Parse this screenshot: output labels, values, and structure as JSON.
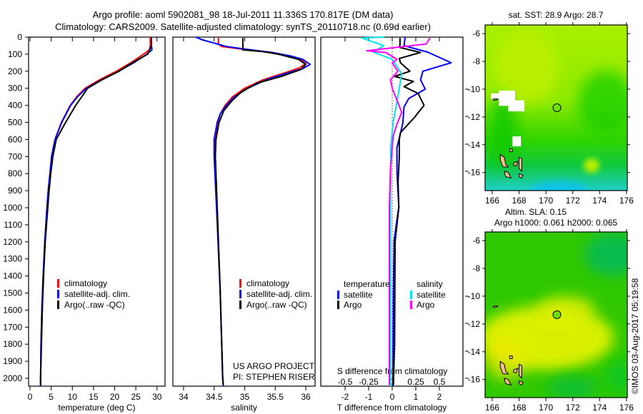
{
  "title": {
    "line1": "Argo profile: aoml 5902081_98 18-Jul-2011 11.336S 170.817E (DM data)",
    "line2": "Climatology: CARS2009. Satellite-adjusted climatology: synTS_20110718.nc (0.69d earlier)"
  },
  "credit": "©IMOS 03-Aug-2017 05:19:58",
  "colors": {
    "climatology": "#ff0000",
    "satellite": "#0000ff",
    "argo": "#000000",
    "s_satellite": "#00e5ee",
    "s_argo": "#ff00ff",
    "land": "#f5c08a"
  },
  "chart_data": [
    {
      "id": "temperature",
      "type": "line",
      "xlabel": "temperature (deg C)",
      "ylabel": "depth",
      "xlim": [
        -0.34,
        31.9
      ],
      "ylim": [
        2046,
        0
      ],
      "xticks": [
        0,
        5,
        10,
        15,
        20,
        25,
        30
      ],
      "yticks": [
        0,
        100,
        200,
        300,
        400,
        500,
        600,
        700,
        800,
        900,
        1000,
        1100,
        1200,
        1300,
        1400,
        1500,
        1600,
        1700,
        1800,
        1900,
        2000
      ],
      "series": [
        {
          "name": "climatology",
          "color": "#ff0000",
          "depth": [
            0,
            50,
            75,
            100,
            150,
            200,
            250,
            300,
            350,
            400,
            500,
            600,
            700,
            800,
            900,
            1000,
            1200,
            1400,
            1600,
            1800,
            2000,
            2046
          ],
          "values": [
            28.4,
            28.4,
            28.2,
            26.8,
            23.8,
            20.4,
            16.4,
            13.0,
            11.0,
            9.5,
            7.4,
            5.9,
            5.1,
            4.7,
            4.3,
            4.0,
            3.5,
            3.1,
            2.8,
            2.6,
            2.5,
            2.5
          ]
        },
        {
          "name": "satellite-adj. clim.",
          "color": "#0000ff",
          "depth": [
            0,
            50,
            75,
            100,
            150,
            200,
            250,
            300,
            350,
            400,
            500,
            600,
            700,
            800,
            900,
            1000,
            1200,
            1400,
            1600,
            1800,
            2000,
            2046
          ],
          "values": [
            28.7,
            28.7,
            28.8,
            27.6,
            24.5,
            21.0,
            16.9,
            13.3,
            11.2,
            9.6,
            7.5,
            5.9,
            5.1,
            4.7,
            4.3,
            4.0,
            3.5,
            3.1,
            2.8,
            2.6,
            2.5,
            2.5
          ]
        },
        {
          "name": "Argo(..raw -QC)",
          "color": "#000000",
          "depth": [
            5,
            50,
            100,
            150,
            200,
            250,
            300,
            350,
            400,
            500,
            600,
            700,
            800,
            900,
            1000,
            1200,
            1400,
            1600,
            1800,
            2000,
            2040
          ],
          "values": [
            28.7,
            28.7,
            27.8,
            24.2,
            21.0,
            17.0,
            13.6,
            12.2,
            10.8,
            8.4,
            6.2,
            5.4,
            4.9,
            4.5,
            4.2,
            3.6,
            3.2,
            2.9,
            2.7,
            2.5,
            2.5
          ]
        }
      ],
      "legend": [
        "climatology",
        "satellite-adj. clim.",
        "Argo(..raw -QC)"
      ]
    },
    {
      "id": "salinity",
      "type": "line",
      "xlabel": "salinity",
      "xlim": [
        33.825,
        36.152
      ],
      "ylim": [
        2046,
        0
      ],
      "xticks": [
        34,
        34.5,
        35,
        35.5,
        36
      ],
      "series": [
        {
          "name": "climatology",
          "color": "#ff0000",
          "depth": [
            0,
            40,
            55,
            70,
            90,
            110,
            130,
            155,
            180,
            210,
            250,
            300,
            350,
            400,
            450,
            500,
            600,
            700,
            1000,
            1500,
            2000,
            2046
          ],
          "values": [
            34.57,
            34.57,
            34.62,
            34.95,
            35.4,
            35.7,
            35.92,
            36.0,
            35.9,
            35.65,
            35.3,
            35.0,
            34.8,
            34.68,
            34.6,
            34.56,
            34.52,
            34.52,
            34.55,
            34.6,
            34.64,
            34.65
          ]
        },
        {
          "name": "satellite-adj. clim.",
          "color": "#0000ff",
          "depth": [
            0,
            15,
            30,
            55,
            70,
            90,
            110,
            130,
            160,
            185,
            210,
            250,
            300,
            350,
            400,
            450,
            500,
            600,
            700,
            1000,
            1500,
            2000,
            2046
          ],
          "values": [
            34.2,
            34.3,
            34.45,
            34.7,
            35.0,
            35.45,
            35.75,
            35.95,
            36.07,
            35.95,
            35.7,
            35.35,
            35.05,
            34.83,
            34.7,
            34.6,
            34.55,
            34.5,
            34.5,
            34.54,
            34.6,
            34.64,
            34.65
          ]
        },
        {
          "name": "Argo(..raw -QC)",
          "color": "#000000",
          "depth": [
            5,
            75,
            85,
            100,
            130,
            160,
            190,
            230,
            270,
            320,
            370,
            430,
            500,
            600,
            700,
            1000,
            1500,
            2000,
            2040
          ],
          "values": [
            34.97,
            34.97,
            35.3,
            35.55,
            35.88,
            36.0,
            35.92,
            35.6,
            35.2,
            34.95,
            34.8,
            34.66,
            34.58,
            34.53,
            34.52,
            34.55,
            34.6,
            34.64,
            34.65
          ]
        }
      ],
      "legend": [
        "climatology",
        "satellite-adj. clim.",
        "Argo(..raw -QC)"
      ],
      "annotation": [
        "US ARGO PROJECT",
        "PI: STEPHEN RISER"
      ]
    },
    {
      "id": "difference",
      "type": "line",
      "xlabel": "T difference from climatology",
      "x2label": "S difference from climatology",
      "xlim": [
        -3.03,
        3.0
      ],
      "x2lim": [
        -0.7575,
        0.75
      ],
      "ylim": [
        2046,
        0
      ],
      "xticks": [
        -2,
        -1,
        0,
        1,
        2
      ],
      "x2ticks": [
        "-0.5",
        "-0.25",
        "0",
        "0.25",
        "0.5"
      ],
      "series": [
        {
          "name": "temperature satellite",
          "axis": "T",
          "color": "#0000ff",
          "depth": [
            0,
            50,
            88,
            150,
            200,
            250,
            305,
            360,
            410,
            506,
            648,
            790,
            995,
            1190,
            1500,
            2000,
            2046
          ],
          "values": [
            0.55,
            0.5,
            1.5,
            2.5,
            1.3,
            1.2,
            1.4,
            0.7,
            0.5,
            0.45,
            0.2,
            0.2,
            0.28,
            0.08,
            0.05,
            0.03,
            0.03
          ]
        },
        {
          "name": "temperature Argo",
          "axis": "T",
          "color": "#000000",
          "depth": [
            5,
            45,
            60,
            90,
            125,
            150,
            200,
            230,
            260,
            290,
            330,
            400,
            470,
            560,
            600,
            700,
            850,
            1000,
            1200,
            1800,
            2040
          ],
          "values": [
            0.33,
            0.33,
            0.3,
            1.2,
            0.3,
            0.35,
            0.75,
            0.1,
            0.9,
            0.5,
            1.1,
            1.35,
            0.95,
            0.35,
            0.3,
            0.3,
            0.25,
            0.28,
            0.12,
            0.1,
            0.05
          ]
        },
        {
          "name": "salinity satellite",
          "axis": "S",
          "color": "#00e5ee",
          "depth": [
            0,
            5,
            50,
            88,
            130,
            215,
            350,
            500,
            640,
            1000,
            2046
          ],
          "values": [
            -0.08,
            -0.32,
            -0.09,
            -0.2,
            0.0,
            0.1,
            0.06,
            0.01,
            -0.015,
            -0.02,
            -0.02
          ]
        },
        {
          "name": "salinity Argo",
          "axis": "S",
          "color": "#ff00ff",
          "depth": [
            5,
            40,
            80,
            90,
            130,
            150,
            200,
            250,
            300,
            370,
            440,
            510,
            580,
            780,
            1000,
            2040
          ],
          "values": [
            0.4,
            0.36,
            -0.27,
            -0.07,
            0.05,
            0.0,
            0.06,
            -0.02,
            0.0,
            0.05,
            0.1,
            0.05,
            0.01,
            -0.02,
            -0.03,
            -0.03
          ]
        }
      ],
      "legend": {
        "temperature": {
          "heading": "temperature",
          "items": [
            "satellite",
            "Argo"
          ]
        },
        "salinity": {
          "heading": "salinity",
          "items": [
            "satellite",
            "Argo"
          ]
        }
      }
    },
    {
      "id": "sst-map",
      "type": "heatmap",
      "title": "sat. SST: 28.9 Argo: 28.7",
      "xlim": [
        165.47,
        176.06
      ],
      "ylim": [
        -17.3,
        -5.38
      ],
      "xticks": [
        166,
        168,
        170,
        172,
        174,
        176
      ],
      "yticks": [
        -6,
        -8,
        -10,
        -12,
        -14,
        -16
      ],
      "marker": {
        "lon": 170.817,
        "lat": -11.336
      }
    },
    {
      "id": "sla-map",
      "type": "heatmap",
      "title": "Altim. SLA: 0.15",
      "subtitle": "Argo h1000: 0.061 h2000: 0.065",
      "xlim": [
        165.47,
        176.06
      ],
      "ylim": [
        -17.3,
        -5.38
      ],
      "xticks": [
        166,
        168,
        170,
        172,
        174,
        176
      ],
      "yticks": [
        -6,
        -8,
        -10,
        -12,
        -14,
        -16
      ],
      "marker": {
        "lon": 170.817,
        "lat": -11.336
      }
    }
  ]
}
